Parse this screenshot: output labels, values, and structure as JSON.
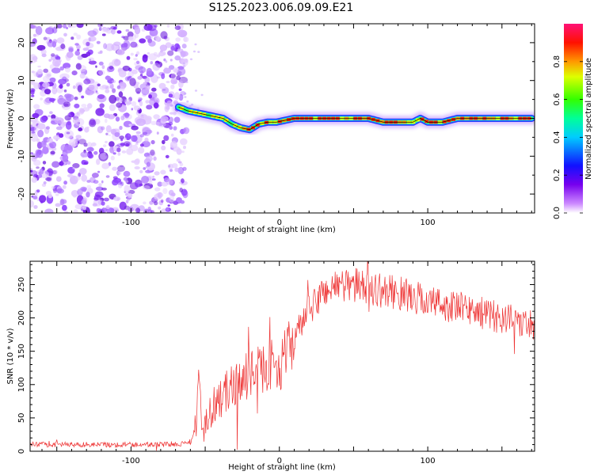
{
  "figure_title": "S125.2023.006.09.09.E21",
  "chart_data": [
    {
      "type": "heatmap",
      "id": "spectrogram",
      "title": "S125.2023.006.09.09.E21",
      "xlabel": "Height of straight line (km)",
      "ylabel": "Frequency (Hz)",
      "xlim": [
        -168,
        172
      ],
      "ylim": [
        -25,
        25
      ],
      "xticks": [
        -100,
        0,
        100
      ],
      "xtick_labels": [
        "-100",
        "0",
        "100"
      ],
      "yticks": [
        -20,
        -10,
        0,
        10,
        20
      ],
      "ytick_labels": [
        "-20",
        "-10",
        "0",
        "10",
        "20"
      ],
      "colorbar": {
        "label": "Normalized spectral amplitude",
        "range": [
          0,
          1
        ],
        "ticks": [
          0.0,
          0.2,
          0.4,
          0.6,
          0.8
        ],
        "tick_labels": [
          "0.0",
          "0.2",
          "0.4",
          "0.6",
          "0.8"
        ]
      },
      "noise_region_x_range": [
        -168,
        -68
      ],
      "ridge": {
        "x": [
          -68,
          -62,
          -56,
          -50,
          -44,
          -38,
          -32,
          -26,
          -20,
          -14,
          -8,
          -2,
          4,
          10,
          20,
          30,
          40,
          50,
          60,
          70,
          80,
          90,
          95,
          100,
          110,
          120,
          130,
          140,
          150,
          160,
          170
        ],
        "freq_hz": [
          3,
          2,
          1.5,
          1,
          0.5,
          0,
          -1.5,
          -2.5,
          -3,
          -1.5,
          -1,
          -1,
          -0.5,
          0,
          0,
          0,
          0,
          0,
          0,
          -1,
          -1,
          -1,
          0,
          -1,
          -1,
          0,
          0,
          0,
          0,
          0,
          0
        ]
      }
    },
    {
      "type": "line",
      "id": "snr",
      "xlabel": "Height of straight line (km)",
      "ylabel": "SNR (10 * v/v)",
      "xlim": [
        -168,
        172
      ],
      "ylim": [
        0,
        285
      ],
      "xticks": [
        -100,
        0,
        100
      ],
      "xtick_labels": [
        "-100",
        "0",
        "100"
      ],
      "yticks": [
        0,
        50,
        100,
        150,
        200,
        250
      ],
      "ytick_labels": [
        "0",
        "50",
        "100",
        "150",
        "200",
        "250"
      ],
      "color": "#ee3333",
      "series": [
        {
          "name": "SNR",
          "x": [
            -168,
            -140,
            -110,
            -80,
            -60,
            -56,
            -54,
            -52,
            -50,
            -45,
            -40,
            -35,
            -30,
            -25,
            -20,
            -15,
            -10,
            -5,
            0,
            5,
            10,
            15,
            20,
            25,
            30,
            40,
            50,
            60,
            70,
            80,
            90,
            100,
            110,
            120,
            130,
            140,
            150,
            160,
            172
          ],
          "y": [
            10,
            10,
            10,
            10,
            12,
            40,
            110,
            30,
            45,
            70,
            80,
            90,
            100,
            110,
            115,
            120,
            125,
            130,
            125,
            150,
            170,
            190,
            210,
            225,
            240,
            250,
            250,
            245,
            240,
            238,
            232,
            225,
            220,
            215,
            212,
            205,
            200,
            195,
            190
          ]
        }
      ]
    }
  ]
}
